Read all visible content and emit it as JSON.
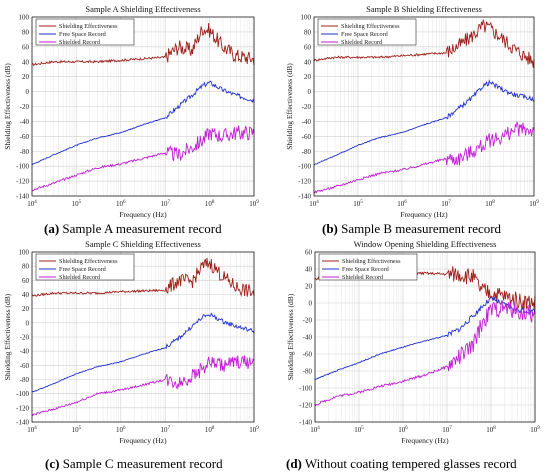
{
  "captions": [
    {
      "letter": "(a)",
      "text": " Sample A measurement record"
    },
    {
      "letter": "(b)",
      "text": " Sample B measurement record"
    },
    {
      "letter": "(c)",
      "text": " Sample C measurement record"
    },
    {
      "letter": "(d)",
      "text": " Without coating tempered glasses record"
    }
  ],
  "colors": {
    "se": "#a0201a",
    "free": "#1f2fd0",
    "shield": "#c21fd6"
  },
  "chart_data": [
    {
      "type": "line",
      "title": "Sample A Shielding Effectiveness",
      "xlabel": "Frequency (Hz)",
      "ylabel": "Shielding Effectiveness (dB)",
      "xscale": "log",
      "xlim": [
        10000,
        1000000000
      ],
      "ylim": [
        -140,
        100
      ],
      "yticks": [
        -140,
        -120,
        -100,
        -80,
        -60,
        -40,
        -20,
        0,
        20,
        40,
        60,
        80,
        100
      ],
      "xticks": [
        "10^4",
        "10^5",
        "10^6",
        "10^7",
        "10^8",
        "10^9"
      ],
      "grid": true,
      "legend": "top-left",
      "series": [
        {
          "name": "Shielding Effectiveness",
          "x": [
            10000,
            30000,
            100000,
            300000,
            1000000,
            3000000,
            10000000,
            20000000,
            40000000,
            70000000,
            100000000,
            200000000,
            400000000,
            1000000000
          ],
          "y": [
            36,
            40,
            40,
            40,
            42,
            44,
            46,
            60,
            55,
            85,
            82,
            60,
            48,
            44
          ]
        },
        {
          "name": "Free Space Record",
          "x": [
            10000,
            30000,
            100000,
            300000,
            1000000,
            3000000,
            10000000,
            20000000,
            40000000,
            70000000,
            100000000,
            200000000,
            400000000,
            1000000000
          ],
          "y": [
            -98,
            -85,
            -72,
            -62,
            -55,
            -45,
            -35,
            -20,
            -5,
            8,
            12,
            2,
            -5,
            -12
          ]
        },
        {
          "name": "Shielded Record",
          "x": [
            10000,
            30000,
            100000,
            300000,
            1000000,
            3000000,
            10000000,
            20000000,
            40000000,
            70000000,
            100000000,
            200000000,
            400000000,
            1000000000
          ],
          "y": [
            -132,
            -123,
            -112,
            -102,
            -97,
            -90,
            -82,
            -85,
            -75,
            -65,
            -55,
            -60,
            -55,
            -55
          ]
        }
      ]
    },
    {
      "type": "line",
      "title": "Sample B Shielding Effectiveness",
      "xlabel": "Frequency (Hz)",
      "ylabel": "Shielding Effectiveness (dB)",
      "xscale": "log",
      "xlim": [
        10000,
        1000000000
      ],
      "ylim": [
        -140,
        100
      ],
      "yticks": [
        -140,
        -120,
        -100,
        -80,
        -60,
        -40,
        -20,
        0,
        20,
        40,
        60,
        80,
        100
      ],
      "xticks": [
        "10^4",
        "10^5",
        "10^6",
        "10^7",
        "10^8",
        "10^9"
      ],
      "grid": true,
      "legend": "top-left",
      "series": [
        {
          "name": "Shielding Effectiveness",
          "x": [
            10000,
            30000,
            100000,
            300000,
            1000000,
            3000000,
            10000000,
            20000000,
            40000000,
            70000000,
            100000000,
            200000000,
            400000000,
            1000000000
          ],
          "y": [
            42,
            46,
            46,
            46,
            48,
            50,
            52,
            62,
            75,
            88,
            85,
            70,
            55,
            40
          ]
        },
        {
          "name": "Free Space Record",
          "x": [
            10000,
            30000,
            100000,
            300000,
            1000000,
            3000000,
            10000000,
            20000000,
            40000000,
            70000000,
            100000000,
            200000000,
            400000000,
            1000000000
          ],
          "y": [
            -98,
            -86,
            -72,
            -62,
            -55,
            -45,
            -35,
            -22,
            -8,
            8,
            12,
            2,
            -5,
            -10
          ]
        },
        {
          "name": "Shielded Record",
          "x": [
            10000,
            30000,
            100000,
            300000,
            1000000,
            3000000,
            10000000,
            20000000,
            40000000,
            70000000,
            100000000,
            200000000,
            400000000,
            1000000000
          ],
          "y": [
            -135,
            -128,
            -118,
            -110,
            -105,
            -98,
            -90,
            -90,
            -80,
            -72,
            -65,
            -60,
            -50,
            -52
          ]
        }
      ]
    },
    {
      "type": "line",
      "title": "Sample C Shielding Effectiveness",
      "xlabel": "Frequency (Hz)",
      "ylabel": "Shielding Effectiveness (dB)",
      "xscale": "log",
      "xlim": [
        10000,
        1000000000
      ],
      "ylim": [
        -140,
        100
      ],
      "yticks": [
        -140,
        -120,
        -100,
        -80,
        -60,
        -40,
        -20,
        0,
        20,
        40,
        60,
        80,
        100
      ],
      "xticks": [
        "10^4",
        "10^5",
        "10^6",
        "10^7",
        "10^8",
        "10^9"
      ],
      "grid": true,
      "legend": "top-left",
      "series": [
        {
          "name": "Shielding Effectiveness",
          "x": [
            10000,
            30000,
            100000,
            300000,
            1000000,
            3000000,
            10000000,
            20000000,
            40000000,
            70000000,
            100000000,
            200000000,
            400000000,
            1000000000
          ],
          "y": [
            38,
            42,
            42,
            42,
            44,
            45,
            46,
            60,
            58,
            80,
            85,
            65,
            50,
            42
          ]
        },
        {
          "name": "Free Space Record",
          "x": [
            10000,
            30000,
            100000,
            300000,
            1000000,
            3000000,
            10000000,
            20000000,
            40000000,
            70000000,
            100000000,
            200000000,
            400000000,
            1000000000
          ],
          "y": [
            -98,
            -86,
            -72,
            -62,
            -55,
            -45,
            -35,
            -22,
            -5,
            8,
            12,
            2,
            -5,
            -12
          ]
        },
        {
          "name": "Shielded Record",
          "x": [
            10000,
            30000,
            100000,
            300000,
            1000000,
            3000000,
            10000000,
            20000000,
            40000000,
            70000000,
            100000000,
            200000000,
            400000000,
            1000000000
          ],
          "y": [
            -130,
            -122,
            -112,
            -100,
            -95,
            -88,
            -80,
            -85,
            -75,
            -65,
            -55,
            -60,
            -55,
            -55
          ]
        }
      ]
    },
    {
      "type": "line",
      "title": "Window Opening Shielding Effectiveness",
      "xlabel": "Frequency (Hz)",
      "ylabel": "Shielding Effectiveness (dB)",
      "xscale": "log",
      "xlim": [
        10000,
        1000000000
      ],
      "ylim": [
        -140,
        60
      ],
      "yticks": [
        -140,
        -120,
        -100,
        -80,
        -60,
        -40,
        -20,
        0,
        20,
        40,
        60
      ],
      "xticks": [
        "10^4",
        "10^5",
        "10^6",
        "10^7",
        "10^8",
        "10^9"
      ],
      "grid": true,
      "legend": "top-left",
      "series": [
        {
          "name": "Shielding Effectiveness",
          "x": [
            10000,
            30000,
            100000,
            300000,
            1000000,
            3000000,
            10000000,
            20000000,
            40000000,
            60000000,
            100000000,
            200000000,
            400000000,
            1000000000
          ],
          "y": [
            28,
            34,
            35,
            35,
            35,
            35,
            34,
            34,
            30,
            15,
            12,
            8,
            3,
            0
          ]
        },
        {
          "name": "Free Space Record",
          "x": [
            10000,
            30000,
            100000,
            300000,
            1000000,
            3000000,
            10000000,
            20000000,
            40000000,
            60000000,
            100000000,
            200000000,
            400000000,
            1000000000
          ],
          "y": [
            -90,
            -80,
            -70,
            -60,
            -52,
            -45,
            -38,
            -30,
            -15,
            -5,
            5,
            -2,
            -8,
            -10
          ]
        },
        {
          "name": "Shielded Record",
          "x": [
            10000,
            30000,
            100000,
            300000,
            1000000,
            3000000,
            10000000,
            20000000,
            40000000,
            60000000,
            100000000,
            200000000,
            400000000,
            1000000000
          ],
          "y": [
            -120,
            -110,
            -105,
            -98,
            -92,
            -85,
            -75,
            -62,
            -50,
            -25,
            -8,
            -5,
            -10,
            -15
          ]
        }
      ]
    }
  ]
}
